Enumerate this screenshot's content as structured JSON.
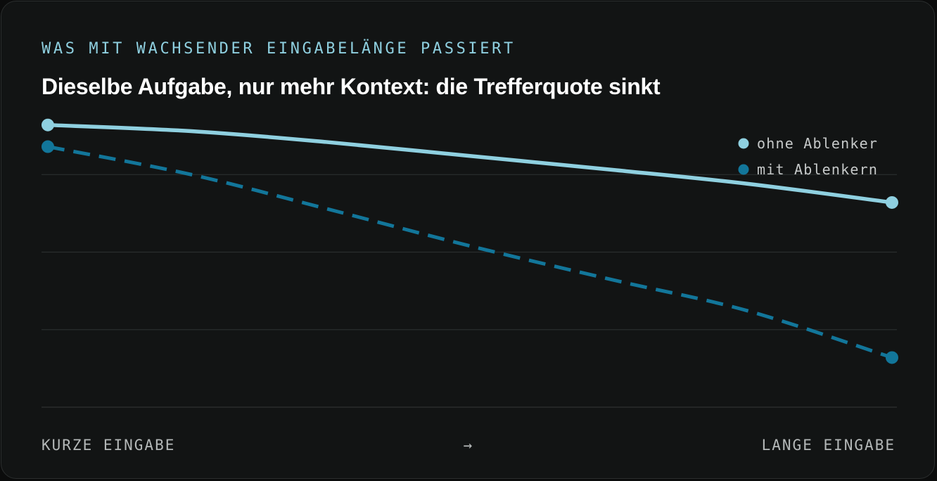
{
  "eyebrow": "WAS MIT WACHSENDER EINGABELÄNGE PASSIERT",
  "title": "Dieselbe Aufgabe, nur mehr Kontext: die Trefferquote sinkt",
  "colors": {
    "background": "#121414",
    "grid": "#2a2d2d",
    "series_light": "#8fd0e0",
    "series_dark": "#12769a"
  },
  "chart_data": {
    "type": "line",
    "x": [
      0,
      0.17,
      0.33,
      0.5,
      0.67,
      0.83,
      1
    ],
    "xlabel_start": "KURZE EINGABE",
    "xlabel_arrow": "→",
    "xlabel_end": "LANGE EINGABE",
    "ylim": [
      0,
      100
    ],
    "grid": true,
    "legend_position": "top-right",
    "series": [
      {
        "name": "ohne Ablenker",
        "style": "solid",
        "color": "#8fd0e0",
        "values": [
          91,
          89,
          85.5,
          81,
          76.5,
          72,
          66
        ]
      },
      {
        "name": "mit Ablenkern",
        "style": "dashed",
        "color": "#12769a",
        "values": [
          84,
          75,
          64,
          52,
          41,
          31,
          16
        ]
      }
    ]
  }
}
